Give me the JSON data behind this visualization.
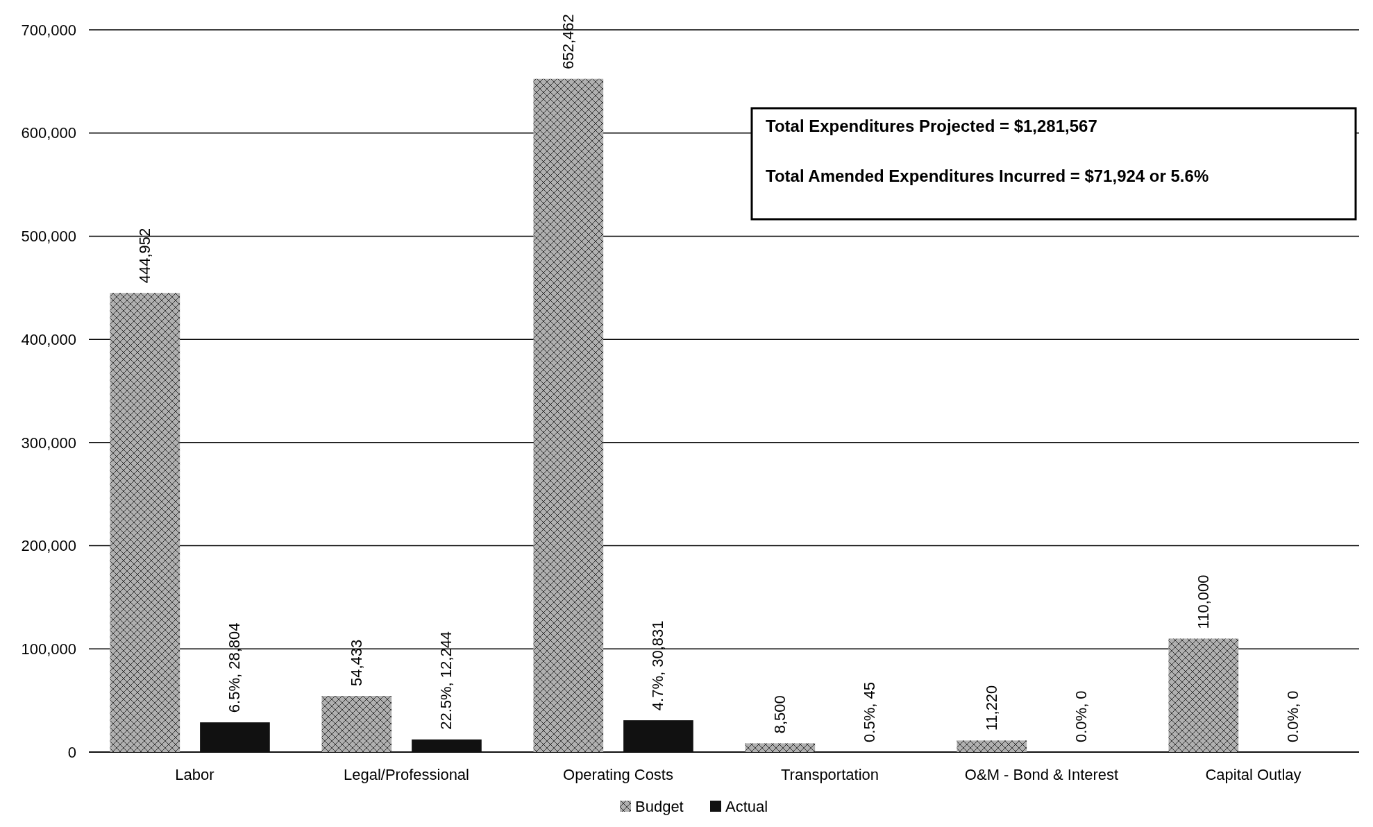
{
  "chart_data": {
    "type": "bar",
    "categories": [
      "Labor",
      "Legal/Professional",
      "Operating Costs",
      "Transportation",
      "O&M - Bond & Interest",
      "Capital Outlay"
    ],
    "series": [
      {
        "name": "Budget",
        "color": "#b0b0b0",
        "values": [
          444952,
          54433,
          652462,
          8500,
          11220,
          110000
        ],
        "value_labels": [
          "444,952",
          "54,433",
          "652,462",
          "8,500",
          "11,220",
          "110,000"
        ]
      },
      {
        "name": "Actual",
        "color": "#111111",
        "values": [
          28804,
          12244,
          30831,
          45,
          0,
          0
        ],
        "value_labels": [
          "6.5%, 28,804",
          "22.5%, 12,244",
          "4.7%, 30,831",
          "0.5%, 45",
          "0.0%, 0",
          "0.0%, 0"
        ]
      }
    ],
    "ylim": [
      0,
      700000
    ],
    "yticks": [
      {
        "value": 0,
        "label": "0"
      },
      {
        "value": 100000,
        "label": "100,000"
      },
      {
        "value": 200000,
        "label": "200,000"
      },
      {
        "value": 300000,
        "label": "300,000"
      },
      {
        "value": 400000,
        "label": "400,000"
      },
      {
        "value": 500000,
        "label": "500,000"
      },
      {
        "value": 600000,
        "label": "600,000"
      },
      {
        "value": 700000,
        "label": "700,000"
      }
    ],
    "grid": "y",
    "legend": "bottom",
    "annotations": [
      "Total Expenditures Projected = $1,281,567",
      "Total Amended Expenditures Incurred = $71,924 or 5.6%"
    ]
  }
}
